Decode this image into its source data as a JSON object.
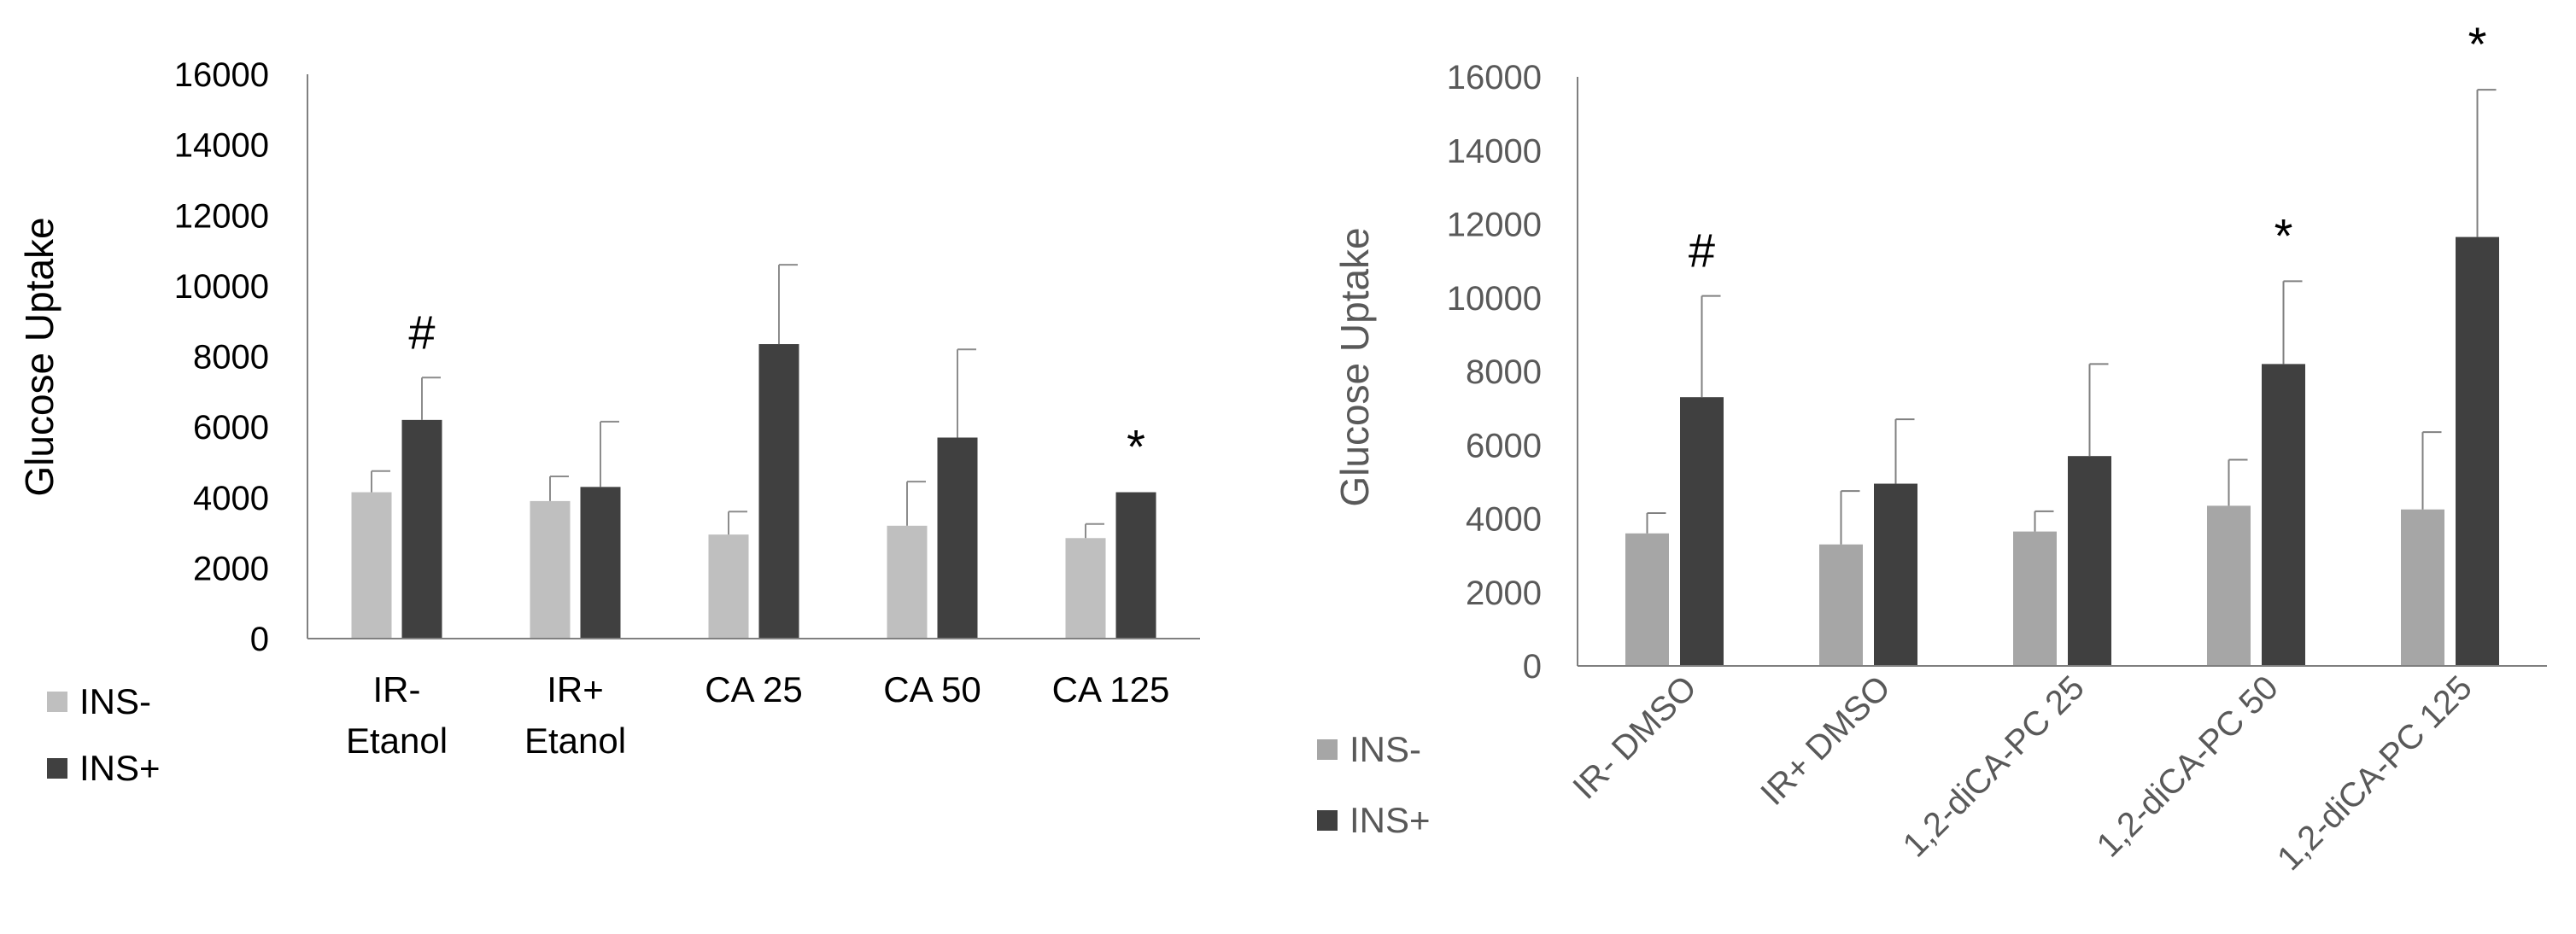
{
  "chart_data": [
    {
      "type": "bar",
      "ylabel": "Glucose Uptake",
      "ylim": [
        0,
        16000
      ],
      "yticks": [
        "0",
        "2000",
        "4000",
        "6000",
        "8000",
        "10000",
        "12000",
        "14000",
        "16000"
      ],
      "categories": [
        "IR-\nEtanol",
        "IR+\nEtanol",
        "CA 25",
        "CA 50",
        "CA 125"
      ],
      "series": [
        {
          "name": "INS-",
          "color": "#bfbfbf",
          "values": [
            4150,
            3900,
            2950,
            3200,
            2850
          ],
          "errors": [
            600,
            700,
            650,
            1250,
            400
          ]
        },
        {
          "name": "INS+",
          "color": "#404040",
          "values": [
            6200,
            4300,
            8350,
            5700,
            4150
          ],
          "errors": [
            1200,
            1850,
            2250,
            2500,
            0
          ]
        }
      ],
      "annotations": [
        {
          "text": "#",
          "category": 0,
          "series": 1
        },
        {
          "text": "*",
          "category": 4,
          "series": 1
        }
      ],
      "legend": "bottom-left",
      "grid": false
    },
    {
      "type": "bar",
      "ylabel": "Glucose Uptake",
      "ylim": [
        0,
        16000
      ],
      "yticks": [
        "0",
        "2000",
        "4000",
        "6000",
        "8000",
        "10000",
        "12000",
        "14000",
        "16000"
      ],
      "categories": [
        "IR- DMSO",
        "IR+ DMSO",
        "1,2-diCA-PC 25",
        "1,2-diCA-PC 50",
        "1,2-diCA-PC 125"
      ],
      "series": [
        {
          "name": "INS-",
          "color": "#a6a6a6",
          "values": [
            3600,
            3300,
            3650,
            4350,
            4250
          ],
          "errors": [
            550,
            1450,
            550,
            1250,
            2100
          ]
        },
        {
          "name": "INS+",
          "color": "#404040",
          "values": [
            7300,
            4950,
            5700,
            8200,
            11650
          ],
          "errors": [
            2750,
            1750,
            2500,
            2250,
            4000
          ]
        }
      ],
      "annotations": [
        {
          "text": "#",
          "category": 0,
          "series": 1
        },
        {
          "text": "*",
          "category": 3,
          "series": 1
        },
        {
          "text": "*",
          "category": 4,
          "series": 1
        }
      ],
      "legend": "bottom-left",
      "grid": false
    }
  ]
}
